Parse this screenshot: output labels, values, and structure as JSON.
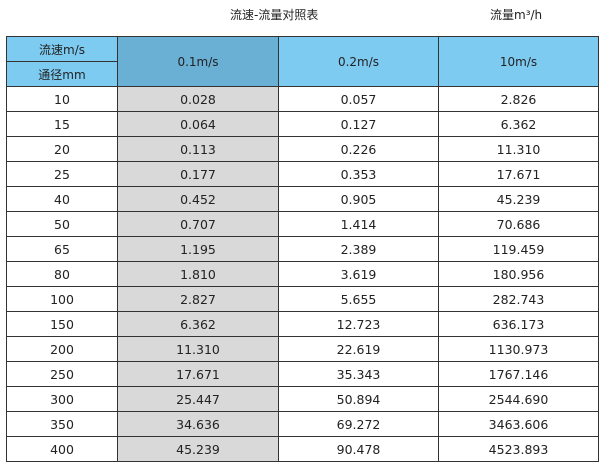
{
  "title": "流速-流量对照表",
  "unit": "流量m³/h",
  "header": {
    "velocity_label": "流速m/s",
    "diameter_label": "通径mm",
    "columns": [
      "0.1m/s",
      "0.2m/s",
      "10m/s"
    ]
  },
  "colors": {
    "header": "#7ecbf2",
    "selected_header": "#6aafd4",
    "selected_column": "#d9d9d9"
  },
  "rows": [
    [
      "10",
      "0.028",
      "0.057",
      "2.826"
    ],
    [
      "15",
      "0.064",
      "0.127",
      "6.362"
    ],
    [
      "20",
      "0.113",
      "0.226",
      "11.310"
    ],
    [
      "25",
      "0.177",
      "0.353",
      "17.671"
    ],
    [
      "40",
      "0.452",
      "0.905",
      "45.239"
    ],
    [
      "50",
      "0.707",
      "1.414",
      "70.686"
    ],
    [
      "65",
      "1.195",
      "2.389",
      "119.459"
    ],
    [
      "80",
      "1.810",
      "3.619",
      "180.956"
    ],
    [
      "100",
      "2.827",
      "5.655",
      "282.743"
    ],
    [
      "150",
      "6.362",
      "12.723",
      "636.173"
    ],
    [
      "200",
      "11.310",
      "22.619",
      "1130.973"
    ],
    [
      "250",
      "17.671",
      "35.343",
      "1767.146"
    ],
    [
      "300",
      "25.447",
      "50.894",
      "2544.690"
    ],
    [
      "350",
      "34.636",
      "69.272",
      "3463.606"
    ],
    [
      "400",
      "45.239",
      "90.478",
      "4523.893"
    ]
  ]
}
